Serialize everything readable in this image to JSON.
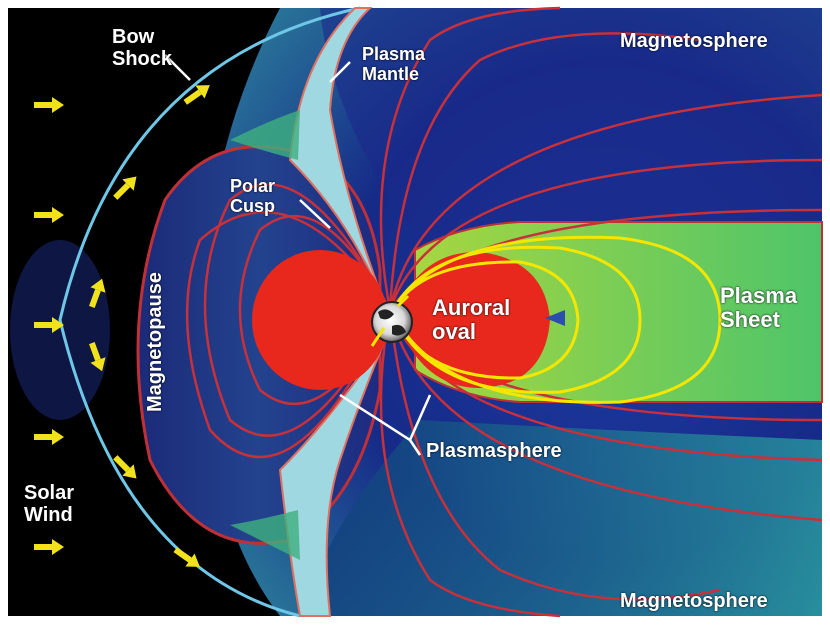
{
  "labels": {
    "bow_shock": [
      "Bow",
      "Shock"
    ],
    "plasma_mantle": [
      "Plasma",
      "Mantle"
    ],
    "magnetosphere_top": "Magnetosphere",
    "magnetosphere_bottom": "Magnetosphere",
    "polar_cusp": [
      "Polar",
      "Cusp"
    ],
    "magnetopause": "Magnetopause",
    "auroral_oval": [
      "Auroral",
      "oval"
    ],
    "plasma_sheet": [
      "Plasma",
      "Sheet"
    ],
    "plasmasphere": "Plasmasphere",
    "solar_wind": [
      "Solar",
      "Wind"
    ]
  },
  "colors": {
    "solar_wind_region": "#000000",
    "magnetosphere": "#1a2a8a",
    "plasma_sheet": "#7ec84a",
    "plasmasphere": "#e8281c",
    "field_lines": "#c8303a",
    "closed_field_lines": "#f5e600",
    "arrows": "#f2e21b",
    "bow_shock": "#6fc7e8",
    "mantle": "#9fd8e0"
  },
  "icons": {
    "solar_wind_arrow": "arrow-icon",
    "earth": "earth-icon"
  }
}
